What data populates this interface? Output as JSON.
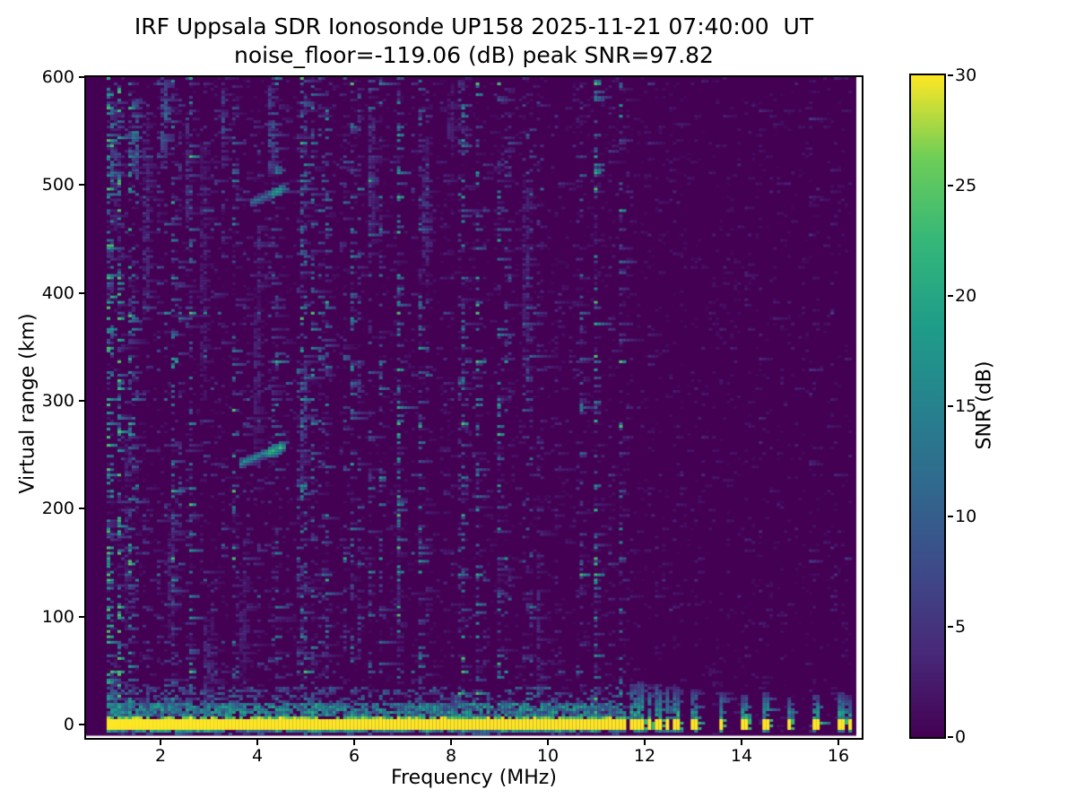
{
  "figure": {
    "background": "#ffffff"
  },
  "chart_data": {
    "type": "heatmap",
    "title": "IRF Uppsala SDR Ionosonde UP158 2025-11-21 07:40:00  UT",
    "subtitle": "noise_floor=-119.06 (dB) peak SNR=97.82",
    "xlabel": "Frequency (MHz)",
    "ylabel": "Virtual range (km)",
    "x_ticks": [
      2,
      4,
      6,
      8,
      10,
      12,
      14,
      16
    ],
    "y_ticks": [
      0,
      100,
      200,
      300,
      400,
      500,
      600
    ],
    "xlim": [
      0.45,
      16.52
    ],
    "ylim": [
      -12.5,
      600.5
    ],
    "visible_values": {
      "noise_floor_db": -119.06,
      "peak_snr_db": 97.82,
      "station": "UP158",
      "timestamp_ut": "2025-11-21 07:40:00"
    },
    "colorbar": {
      "label": "SNR (dB)",
      "ticks": [
        0,
        5,
        10,
        15,
        20,
        25,
        30
      ],
      "range": [
        0,
        30
      ],
      "colormap": "viridis",
      "stops": [
        "#440154",
        "#482878",
        "#3e4a89",
        "#31688e",
        "#26828e",
        "#1f9e89",
        "#35b779",
        "#6ece58",
        "#fde725"
      ]
    },
    "heatmap": {
      "seed": 20251121,
      "data_f_start": 0.925,
      "data_f_step": 0.074,
      "data_f_end": 16.27,
      "km_top": 600,
      "km_bottom": -10,
      "km_step": 2.5,
      "band_f_max": 11.65,
      "hf_damp_f": 11.66,
      "columns": [
        [
          1.0,
          3.0
        ],
        [
          1.25,
          2.0
        ],
        [
          1.5,
          2.5
        ],
        [
          1.7,
          2.0
        ],
        [
          2.1,
          2.5
        ],
        [
          2.3,
          1.5
        ],
        [
          2.55,
          2.0
        ],
        [
          2.9,
          2.0
        ],
        [
          3.1,
          1.5
        ],
        [
          3.3,
          2.5
        ],
        [
          3.55,
          2.0
        ],
        [
          3.8,
          1.2
        ],
        [
          4.3,
          2.5
        ],
        [
          4.62,
          2.0
        ],
        [
          4.95,
          2.5
        ],
        [
          5.15,
          1.2
        ],
        [
          5.4,
          1.8
        ],
        [
          5.75,
          1.2
        ],
        [
          6.1,
          1.0
        ],
        [
          6.35,
          2.2
        ],
        [
          6.8,
          1.0
        ],
        [
          7.2,
          1.2
        ],
        [
          7.5,
          2.2
        ],
        [
          7.9,
          1.0
        ],
        [
          8.3,
          1.8
        ],
        [
          8.7,
          1.0
        ],
        [
          9.1,
          1.2
        ],
        [
          9.55,
          2.0
        ],
        [
          9.8,
          1.5
        ],
        [
          10.2,
          1.0
        ],
        [
          10.6,
          1.5
        ],
        [
          11.0,
          1.0
        ],
        [
          11.3,
          1.5
        ],
        [
          12.55,
          1.4
        ],
        [
          13.2,
          1.0
        ],
        [
          13.95,
          1.2
        ],
        [
          14.6,
          1.0
        ],
        [
          15.35,
          1.0
        ],
        [
          15.95,
          1.2
        ]
      ],
      "blobs": [
        [
          1.5,
          545,
          0.07,
          35,
          18
        ],
        [
          2.1,
          560,
          0.07,
          45,
          13
        ],
        [
          3.3,
          555,
          0.06,
          40,
          10
        ],
        [
          4.3,
          553,
          0.07,
          45,
          12
        ],
        [
          1.05,
          520,
          0.06,
          60,
          8
        ],
        [
          1.7,
          470,
          0.07,
          90,
          7
        ],
        [
          2.55,
          515,
          0.06,
          55,
          8
        ],
        [
          4.95,
          280,
          0.07,
          55,
          10
        ],
        [
          6.35,
          505,
          0.07,
          60,
          8
        ],
        [
          7.5,
          475,
          0.07,
          70,
          7
        ],
        [
          2.9,
          420,
          0.06,
          120,
          5
        ],
        [
          9.55,
          420,
          0.06,
          90,
          6
        ],
        [
          3.0,
          55,
          0.08,
          45,
          7
        ],
        [
          1.05,
          30,
          0.06,
          30,
          10
        ],
        [
          5.0,
          555,
          0.05,
          30,
          6
        ],
        [
          8.0,
          560,
          0.05,
          35,
          5
        ],
        [
          2.2,
          140,
          0.06,
          60,
          6
        ],
        [
          4.0,
          330,
          0.05,
          80,
          5
        ],
        [
          6.9,
          130,
          0.05,
          60,
          5
        ],
        [
          9.8,
          90,
          0.06,
          70,
          6
        ],
        [
          1.3,
          180,
          0.05,
          90,
          6
        ],
        [
          3.7,
          90,
          0.05,
          50,
          5
        ]
      ],
      "traces": [
        [
          3.65,
          4.57,
          242,
          258,
          5.0,
          16
        ],
        [
          3.83,
          4.56,
          483,
          497,
          4.5,
          13
        ]
      ],
      "stripes": [
        [
          11.76,
          38
        ],
        [
          11.93,
          40
        ],
        [
          12.11,
          36
        ],
        [
          12.3,
          38
        ],
        [
          12.48,
          34
        ],
        [
          12.67,
          36
        ],
        [
          13.02,
          32
        ],
        [
          13.56,
          30
        ],
        [
          14.06,
          28
        ],
        [
          14.52,
          30
        ],
        [
          15.0,
          26
        ],
        [
          15.54,
          28
        ],
        [
          16.04,
          30
        ],
        [
          16.24,
          24
        ]
      ]
    }
  }
}
